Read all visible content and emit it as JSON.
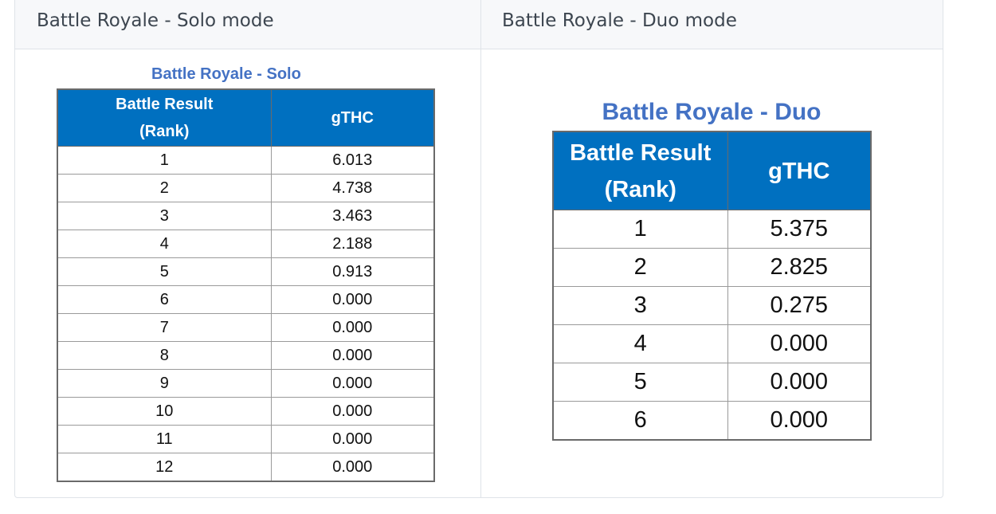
{
  "columns": {
    "solo_header": "Battle Royale - Solo mode",
    "duo_header": "Battle Royale - Duo mode"
  },
  "solo_table": {
    "title": "Battle Royale - Solo",
    "head_rank_line1": "Battle Result",
    "head_rank_line2": "(Rank)",
    "head_value": "gTHC",
    "rows": [
      {
        "rank": "1",
        "value": "6.013"
      },
      {
        "rank": "2",
        "value": "4.738"
      },
      {
        "rank": "3",
        "value": "3.463"
      },
      {
        "rank": "4",
        "value": "2.188"
      },
      {
        "rank": "5",
        "value": "0.913"
      },
      {
        "rank": "6",
        "value": "0.000"
      },
      {
        "rank": "7",
        "value": "0.000"
      },
      {
        "rank": "8",
        "value": "0.000"
      },
      {
        "rank": "9",
        "value": "0.000"
      },
      {
        "rank": "10",
        "value": "0.000"
      },
      {
        "rank": "11",
        "value": "0.000"
      },
      {
        "rank": "12",
        "value": "0.000"
      }
    ]
  },
  "duo_table": {
    "title": "Battle Royale - Duo",
    "head_rank_line1": "Battle Result",
    "head_rank_line2": "(Rank)",
    "head_value": "gTHC",
    "rows": [
      {
        "rank": "1",
        "value": "5.375"
      },
      {
        "rank": "2",
        "value": "2.825"
      },
      {
        "rank": "3",
        "value": "0.275"
      },
      {
        "rank": "4",
        "value": "0.000"
      },
      {
        "rank": "5",
        "value": "0.000"
      },
      {
        "rank": "6",
        "value": "0.000"
      }
    ]
  },
  "colors": {
    "table_header_bg": "#0070c0",
    "table_title": "#4472c4",
    "column_header_bg": "#f7f8fa",
    "border": "#dfe3e8"
  }
}
